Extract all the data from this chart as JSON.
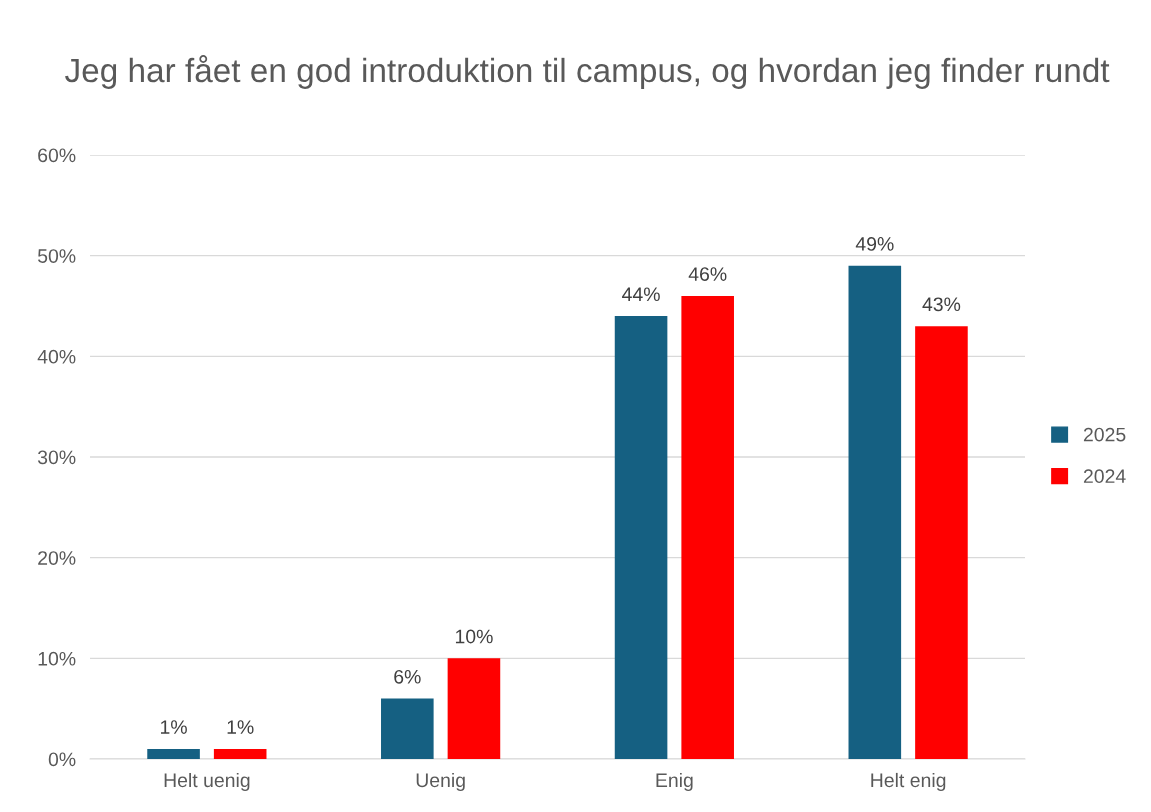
{
  "chart_data": {
    "type": "bar",
    "title": "Jeg har fået en god introduktion til campus, og hvordan jeg finder rundt",
    "categories": [
      "Helt uenig",
      "Uenig",
      "Enig",
      "Helt enig"
    ],
    "series": [
      {
        "name": "2025",
        "color": "#156082",
        "values": [
          1,
          6,
          44,
          49
        ],
        "value_labels": [
          "1%",
          "6%",
          "44%",
          "49%"
        ]
      },
      {
        "name": "2024",
        "color": "#ff0000",
        "values": [
          1,
          10,
          46,
          43
        ],
        "value_labels": [
          "1%",
          "10%",
          "46%",
          "43%"
        ]
      }
    ],
    "ylim": [
      0,
      60
    ],
    "yticks": [
      {
        "value": 0,
        "label": "0%"
      },
      {
        "value": 10,
        "label": "10%"
      },
      {
        "value": 20,
        "label": "20%"
      },
      {
        "value": 30,
        "label": "30%"
      },
      {
        "value": 40,
        "label": "40%"
      },
      {
        "value": 50,
        "label": "50%"
      },
      {
        "value": 60,
        "label": "60%"
      }
    ],
    "grid": "y",
    "legend": "right"
  }
}
